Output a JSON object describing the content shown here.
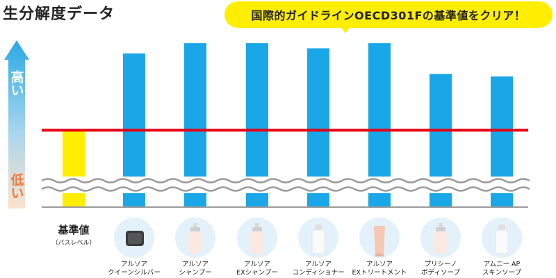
{
  "title": "生分解度データ",
  "callout": "国際的ガイドラインOECD301Fの基準値をクリア！",
  "axis": {
    "high": "高い",
    "low": "低い"
  },
  "baseline": {
    "label": "基準値",
    "sub": "（バスレベル）"
  },
  "colors": {
    "bar": "#1aa7e8",
    "baseline_bar": "#ffee00",
    "threshold": "#e60012",
    "wave": "#9a9a9a",
    "axis_line": "#9a9a9a"
  },
  "products": [
    {
      "line1": "アルソア",
      "line2": "クイーンシルバー",
      "icon": "soap-bar-icon"
    },
    {
      "line1": "アルソア",
      "line2": "シャンプー",
      "icon": "pump-bottle-icon"
    },
    {
      "line1": "アルソア",
      "line2": "EXシャンプー",
      "icon": "pump-bottle-icon"
    },
    {
      "line1": "アルソア",
      "line2": "コンディショナー",
      "icon": "bottle-icon"
    },
    {
      "line1": "アルソア",
      "line2": "EXトリートメント",
      "icon": "tube-icon"
    },
    {
      "line1": "プリシーノ",
      "line2": "ボディソープ",
      "icon": "pump-bottle-icon"
    },
    {
      "line1": "アムニー AP",
      "line2": "スキンソープ",
      "icon": "bottle-icon"
    }
  ],
  "chart_data": {
    "type": "bar",
    "categories": [
      "基準値",
      "アルソア クイーンシルバー",
      "アルソア シャンプー",
      "アルソア EXシャンプー",
      "アルソア コンディショナー",
      "アルソア EXトリートメント",
      "プリシーノ ボディソープ",
      "アムニー AP スキンソープ"
    ],
    "values": [
      60,
      90,
      94,
      94,
      92,
      94,
      82,
      81
    ],
    "ylim": [
      30,
      100
    ],
    "threshold": 60,
    "axis_break": true,
    "grid": false,
    "yticks": false
  }
}
